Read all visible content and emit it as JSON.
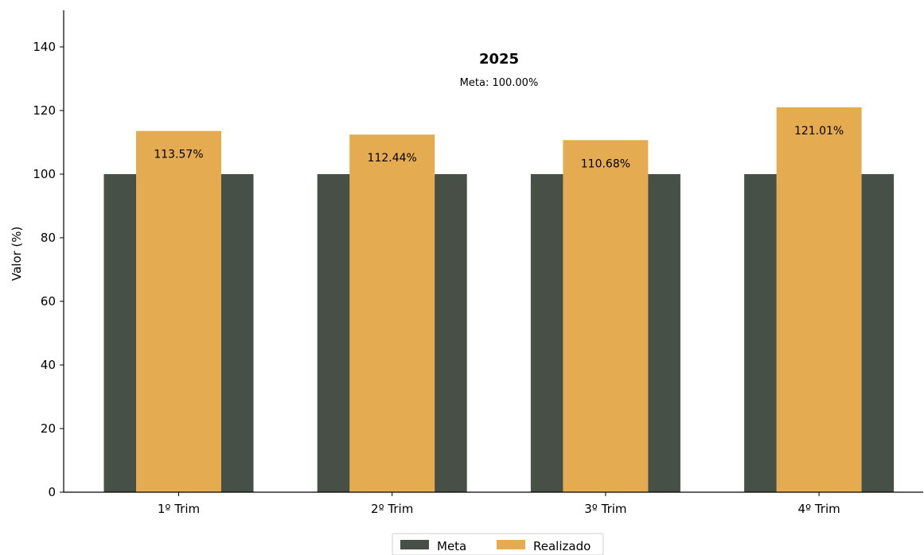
{
  "chart_data": {
    "type": "bar",
    "title": "2025",
    "subtitle": "Meta: 100.00%",
    "xlabel": "",
    "ylabel": "Valor (%)",
    "ylim": [
      0,
      150
    ],
    "yticks": [
      0,
      20,
      40,
      60,
      80,
      100,
      120,
      140
    ],
    "categories": [
      "1º Trim",
      "2º Trim",
      "3º Trim",
      "4º Trim"
    ],
    "series": [
      {
        "name": "Meta",
        "values": [
          100,
          100,
          100,
          100
        ],
        "color": "#465046"
      },
      {
        "name": "Realizado",
        "values": [
          113.57,
          112.44,
          110.68,
          121.01
        ],
        "color": "#E5AB51",
        "labels": [
          "113.57%",
          "112.44%",
          "110.68%",
          "121.01%"
        ]
      }
    ],
    "legend": "bottom-center",
    "grid": false
  }
}
